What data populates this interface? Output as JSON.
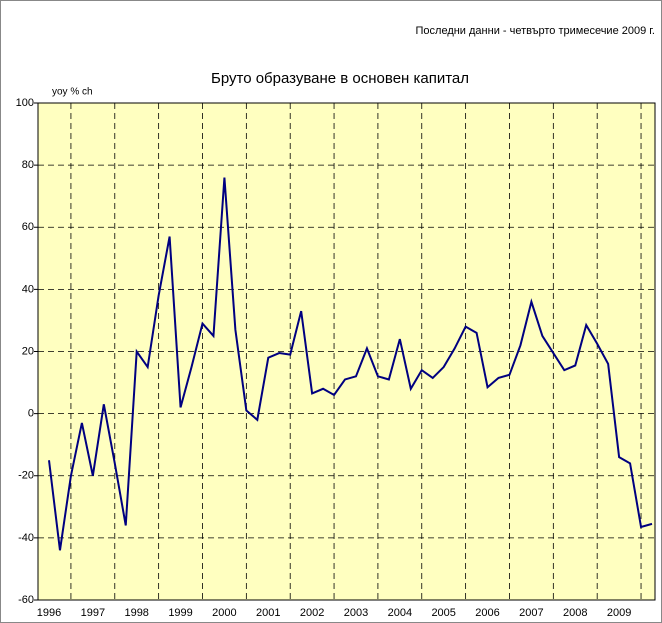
{
  "chart_data": {
    "type": "line",
    "title": "Бруто образуване в основен капитал",
    "subtitle": "Последни данни - четвърто тримесечие 2009 г.",
    "y_label": "yoy % ch",
    "categories": [
      "1996",
      null,
      null,
      null,
      "1997",
      null,
      null,
      null,
      "1998",
      null,
      null,
      null,
      "1999",
      null,
      null,
      null,
      "2000",
      null,
      null,
      null,
      "2001",
      null,
      null,
      null,
      "2002",
      null,
      null,
      null,
      "2003",
      null,
      null,
      null,
      "2004",
      null,
      null,
      null,
      "2005",
      null,
      null,
      null,
      "2006",
      null,
      null,
      null,
      "2007",
      null,
      null,
      null,
      "2008",
      null,
      null,
      null,
      "2009",
      null,
      null,
      null
    ],
    "series": [
      {
        "name": "yoy % ch",
        "color": "#000080",
        "values": [
          -15,
          -44,
          -20,
          -3,
          -20,
          3,
          -16,
          -36,
          20,
          15,
          38,
          57,
          2,
          15,
          29,
          25,
          76,
          27,
          1,
          -2,
          18,
          19.5,
          19,
          33,
          6.5,
          8,
          6,
          11,
          12,
          21,
          12,
          11,
          24,
          8,
          14,
          11.5,
          15,
          21,
          28,
          26,
          8.5,
          11.5,
          12.5,
          22,
          36,
          25,
          19.5,
          14,
          15.5,
          28.5,
          22.5,
          16,
          -14,
          -16,
          -36.5,
          -35.5
        ]
      }
    ],
    "ylim": [
      -60,
      100
    ],
    "yticks": [
      -60,
      -40,
      -20,
      0,
      20,
      40,
      60,
      80,
      100
    ],
    "grid": true,
    "plot_background": "#ffffc0"
  }
}
